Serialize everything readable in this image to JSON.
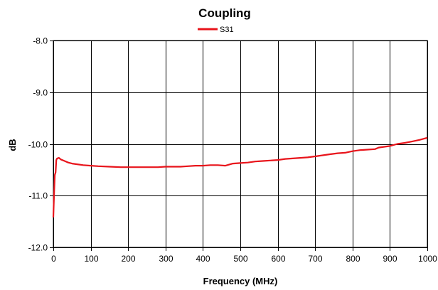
{
  "chart_data": {
    "type": "line",
    "title": "Coupling",
    "xlabel": "Frequency (MHz)",
    "ylabel": "dB",
    "xlim": [
      0,
      1000
    ],
    "ylim": [
      -12.0,
      -8.0
    ],
    "x_ticks": [
      0,
      100,
      200,
      300,
      400,
      500,
      600,
      700,
      800,
      900,
      1000
    ],
    "x_tick_labels": [
      "0",
      "100",
      "200",
      "300",
      "400",
      "500",
      "600",
      "700",
      "800",
      "900",
      "1000"
    ],
    "y_ticks": [
      -8.0,
      -9.0,
      -10.0,
      -11.0,
      -12.0
    ],
    "y_tick_labels": [
      "-8.0",
      "-9.0",
      "-10.0",
      "-11.0",
      "-12.0"
    ],
    "grid": true,
    "legend_position": "top-center",
    "series": [
      {
        "name": "S31",
        "color": "#e8141b",
        "x": [
          0,
          2,
          4,
          6,
          8,
          10,
          15,
          20,
          30,
          40,
          50,
          60,
          80,
          100,
          120,
          150,
          180,
          200,
          230,
          260,
          280,
          300,
          320,
          340,
          360,
          380,
          400,
          420,
          440,
          460,
          480,
          500,
          520,
          540,
          560,
          580,
          600,
          620,
          640,
          660,
          680,
          700,
          720,
          740,
          760,
          780,
          800,
          820,
          840,
          860,
          870,
          880,
          900,
          920,
          940,
          960,
          980,
          1000
        ],
        "values": [
          -11.42,
          -10.95,
          -10.6,
          -10.55,
          -10.31,
          -10.28,
          -10.27,
          -10.3,
          -10.33,
          -10.36,
          -10.38,
          -10.39,
          -10.41,
          -10.42,
          -10.43,
          -10.44,
          -10.45,
          -10.45,
          -10.45,
          -10.45,
          -10.45,
          -10.44,
          -10.44,
          -10.44,
          -10.43,
          -10.42,
          -10.42,
          -10.41,
          -10.41,
          -10.42,
          -10.38,
          -10.37,
          -10.36,
          -10.34,
          -10.33,
          -10.32,
          -10.31,
          -10.29,
          -10.28,
          -10.27,
          -10.26,
          -10.24,
          -10.22,
          -10.2,
          -10.18,
          -10.17,
          -10.14,
          -10.12,
          -10.11,
          -10.1,
          -10.07,
          -10.06,
          -10.04,
          -10.0,
          -9.98,
          -9.95,
          -9.92,
          -9.88
        ]
      }
    ]
  }
}
